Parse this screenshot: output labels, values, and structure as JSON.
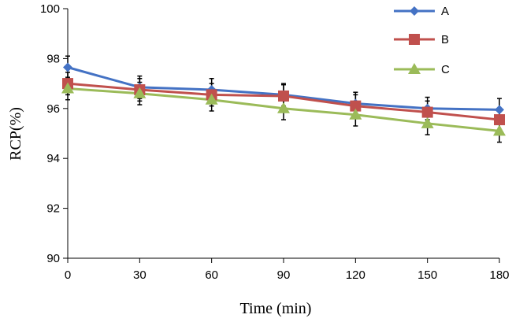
{
  "chart_data": {
    "type": "line",
    "title": "",
    "xlabel": "Time (min)",
    "ylabel": "RCP(%)",
    "x": [
      0,
      30,
      60,
      90,
      120,
      150,
      180
    ],
    "x_tick_labels": [
      "0",
      "30",
      "60",
      "90",
      "120",
      "150",
      "180"
    ],
    "xlim": [
      0,
      180
    ],
    "ylim": [
      90,
      100
    ],
    "y_ticks": [
      90,
      92,
      94,
      96,
      98,
      100
    ],
    "y_tick_labels": [
      "90",
      "92",
      "94",
      "96",
      "98",
      "100"
    ],
    "grid": false,
    "legend_position": "top-right",
    "series": [
      {
        "name": "A",
        "values": [
          97.65,
          96.85,
          96.75,
          96.55,
          96.2,
          96.0,
          95.95
        ],
        "errors": [
          0.45,
          0.45,
          0.45,
          0.45,
          0.45,
          0.45,
          0.45
        ],
        "color": "#4472C4",
        "marker": "diamond"
      },
      {
        "name": "B",
        "values": [
          97.0,
          96.75,
          96.55,
          96.5,
          96.1,
          95.85,
          95.55
        ],
        "errors": [
          0.45,
          0.45,
          0.45,
          0.45,
          0.45,
          0.45,
          0.45
        ],
        "color": "#C0504D",
        "marker": "square"
      },
      {
        "name": "C",
        "values": [
          96.8,
          96.6,
          96.35,
          96.0,
          95.75,
          95.4,
          95.1
        ],
        "errors": [
          0.45,
          0.45,
          0.45,
          0.45,
          0.45,
          0.45,
          0.45
        ],
        "color": "#9BBB59",
        "marker": "triangle"
      }
    ]
  }
}
